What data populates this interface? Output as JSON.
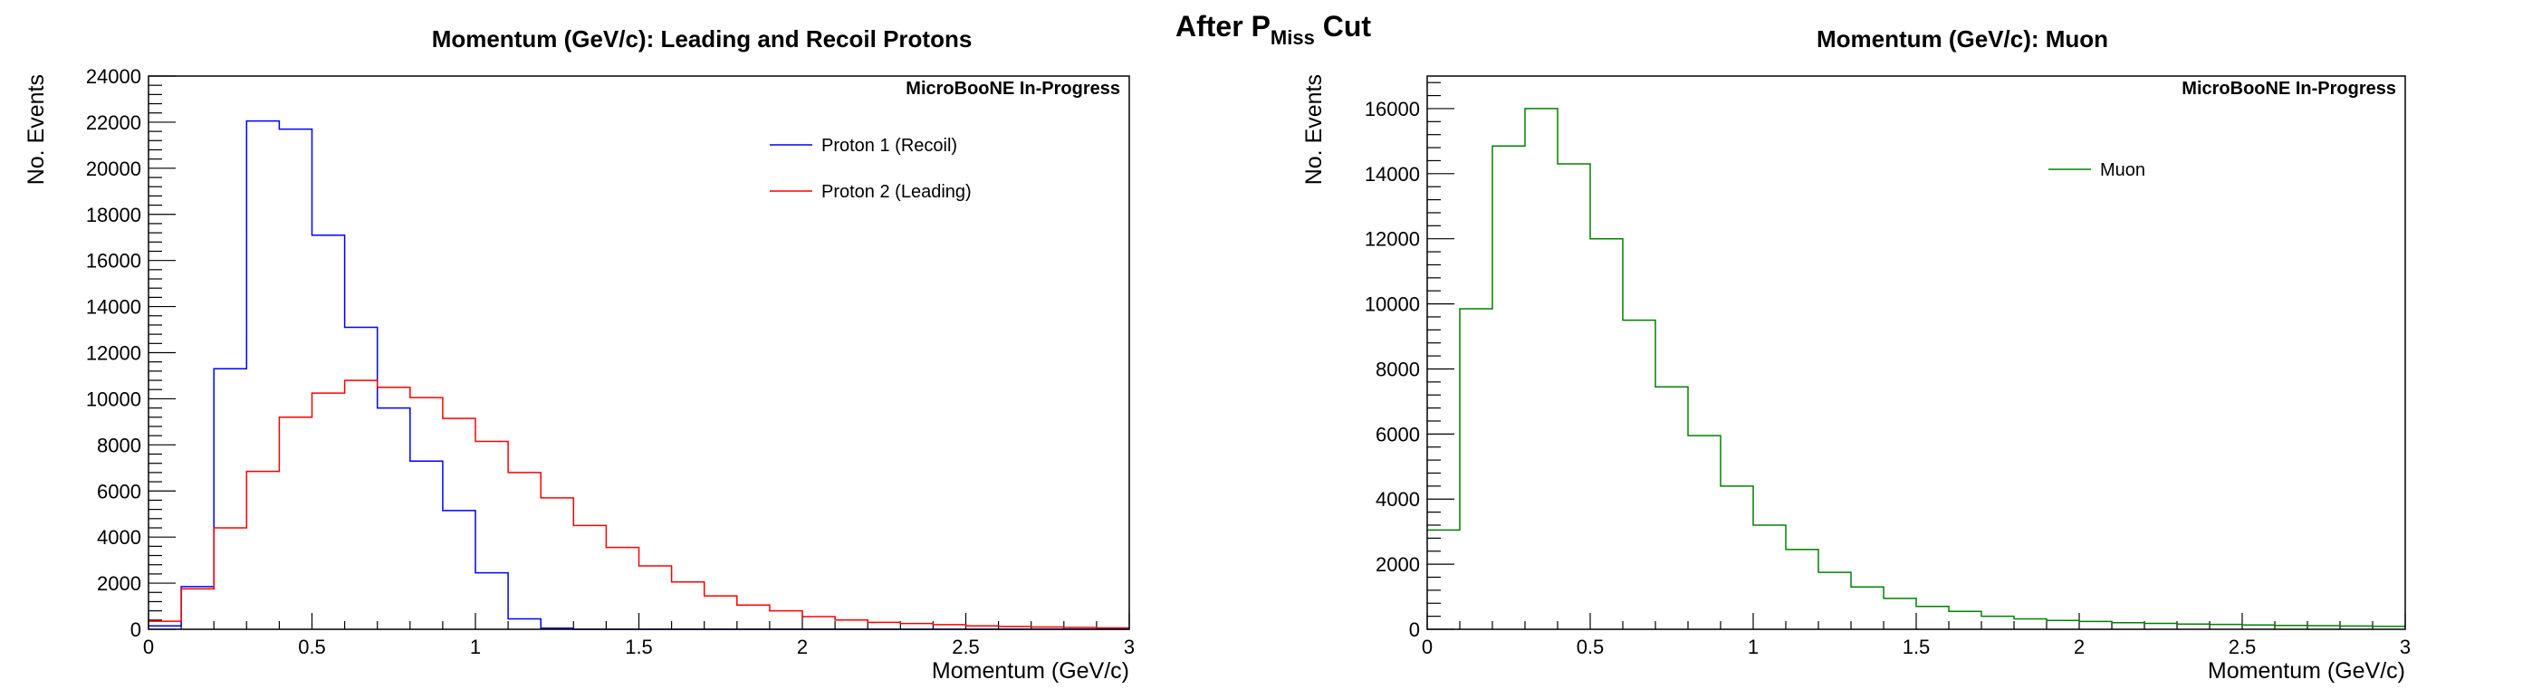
{
  "page_title": {
    "main": "After P",
    "sub": "Miss",
    "tail": " Cut"
  },
  "chart_data": [
    {
      "type": "histogram",
      "title": "Momentum (GeV/c): Leading and Recoil Protons",
      "xlabel": "Momentum (GeV/c)",
      "ylabel": "No. Events",
      "annotation": "MicroBooNE In-Progress",
      "xlim": [
        0,
        3
      ],
      "ylim": [
        0,
        24000
      ],
      "xticks": [
        0,
        0.5,
        1,
        1.5,
        2,
        2.5,
        3
      ],
      "yticks": [
        0,
        2000,
        4000,
        6000,
        8000,
        10000,
        12000,
        14000,
        16000,
        18000,
        20000,
        22000,
        24000
      ],
      "bin_edges": [
        0,
        0.1,
        0.2,
        0.3,
        0.4,
        0.5,
        0.6,
        0.7,
        0.8,
        0.9,
        1.0,
        1.1,
        1.2,
        1.3,
        1.4,
        1.5,
        1.6,
        1.7,
        1.8,
        1.9,
        2.0,
        2.1,
        2.2,
        2.3,
        2.4,
        2.5,
        2.6,
        2.7,
        2.8,
        2.9,
        3.0
      ],
      "legend_position": "top-right",
      "series": [
        {
          "name": "Proton 1 (Recoil)",
          "color": "#0000ff",
          "values": [
            150,
            1850,
            11300,
            22050,
            21700,
            17100,
            13100,
            9600,
            7300,
            5150,
            2450,
            450,
            50,
            0,
            0,
            0,
            0,
            0,
            0,
            0,
            0,
            0,
            0,
            0,
            0,
            0,
            0,
            0,
            0,
            0
          ]
        },
        {
          "name": "Proton 2 (Leading)",
          "color": "#ff0000",
          "values": [
            350,
            1750,
            4400,
            6850,
            9200,
            10250,
            10800,
            10500,
            10050,
            9150,
            8150,
            6800,
            5700,
            4500,
            3550,
            2750,
            2050,
            1450,
            1050,
            800,
            550,
            400,
            300,
            250,
            200,
            150,
            120,
            100,
            80,
            60
          ]
        }
      ]
    },
    {
      "type": "histogram",
      "title": "Momentum (GeV/c): Muon",
      "xlabel": "Momentum (GeV/c)",
      "ylabel": "No. Events",
      "annotation": "MicroBooNE In-Progress",
      "xlim": [
        0,
        3
      ],
      "ylim": [
        0,
        17000
      ],
      "xticks": [
        0,
        0.5,
        1,
        1.5,
        2,
        2.5,
        3
      ],
      "yticks": [
        0,
        2000,
        4000,
        6000,
        8000,
        10000,
        12000,
        14000,
        16000
      ],
      "bin_edges": [
        0,
        0.1,
        0.2,
        0.3,
        0.4,
        0.5,
        0.6,
        0.7,
        0.8,
        0.9,
        1.0,
        1.1,
        1.2,
        1.3,
        1.4,
        1.5,
        1.6,
        1.7,
        1.8,
        1.9,
        2.0,
        2.1,
        2.2,
        2.3,
        2.4,
        2.5,
        2.6,
        2.7,
        2.8,
        2.9,
        3.0
      ],
      "legend_position": "top-right",
      "series": [
        {
          "name": "Muon",
          "color": "#008000",
          "values": [
            3050,
            9850,
            14850,
            16000,
            14300,
            12000,
            9500,
            7450,
            5950,
            4400,
            3200,
            2450,
            1750,
            1300,
            950,
            700,
            550,
            400,
            320,
            270,
            240,
            200,
            180,
            160,
            150,
            130,
            120,
            110,
            100,
            90
          ]
        }
      ]
    }
  ]
}
